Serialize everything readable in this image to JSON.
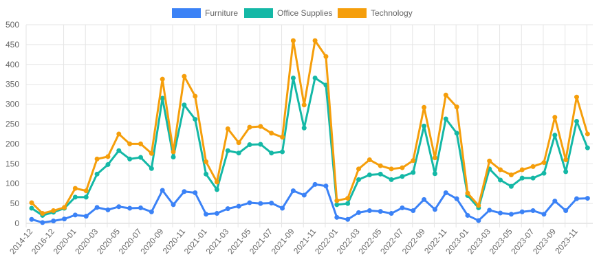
{
  "chart_data": {
    "type": "line",
    "title": "",
    "xlabel": "",
    "ylabel": "",
    "ylim": [
      0,
      500
    ],
    "yticks": [
      0,
      50,
      100,
      150,
      200,
      250,
      300,
      350,
      400,
      450,
      500
    ],
    "grid": true,
    "legend_position": "top",
    "categories": [
      "2014-12",
      "2015-12",
      "2016-12",
      "2019-12",
      "2020-01",
      "2020-02",
      "2020-03",
      "2020-04",
      "2020-05",
      "2020-06",
      "2020-07",
      "2020-08",
      "2020-09",
      "2020-10",
      "2020-11",
      "2020-12",
      "2021-01",
      "2021-02",
      "2021-03",
      "2021-04",
      "2021-05",
      "2021-06",
      "2021-07",
      "2021-08",
      "2021-09",
      "2021-10",
      "2021-11",
      "2021-12",
      "2022-01",
      "2022-02",
      "2022-03",
      "2022-04",
      "2022-05",
      "2022-06",
      "2022-07",
      "2022-08",
      "2022-09",
      "2022-10",
      "2022-11",
      "2022-12",
      "2023-01",
      "2023-02",
      "2023-03",
      "2023-04",
      "2023-05",
      "2023-06",
      "2023-07",
      "2023-08",
      "2023-09",
      "2023-10",
      "2023-11",
      "2023-12"
    ],
    "series": [
      {
        "name": "Furniture",
        "color": "#3b82f6",
        "values": [
          10,
          2,
          6,
          11,
          21,
          18,
          40,
          34,
          42,
          38,
          39,
          29,
          83,
          47,
          80,
          77,
          23,
          25,
          37,
          43,
          52,
          50,
          51,
          38,
          82,
          71,
          98,
          94,
          15,
          10,
          27,
          32,
          30,
          25,
          39,
          32,
          60,
          35,
          77,
          62,
          20,
          7,
          33,
          26,
          23,
          29,
          32,
          23,
          56,
          32,
          62,
          63
        ]
      },
      {
        "name": "Office Supplies",
        "color": "#14b8a6",
        "values": [
          38,
          20,
          28,
          38,
          66,
          66,
          124,
          148,
          183,
          162,
          166,
          138,
          315,
          167,
          298,
          262,
          124,
          85,
          183,
          177,
          198,
          199,
          177,
          180,
          366,
          240,
          366,
          348,
          47,
          50,
          110,
          122,
          124,
          110,
          118,
          128,
          245,
          125,
          263,
          227,
          70,
          39,
          137,
          109,
          93,
          114,
          114,
          126,
          222,
          130,
          257,
          190
        ]
      },
      {
        "name": "Technology",
        "color": "#f59e0b",
        "values": [
          52,
          25,
          32,
          40,
          88,
          82,
          162,
          168,
          225,
          200,
          200,
          176,
          363,
          180,
          370,
          320,
          155,
          104,
          238,
          203,
          242,
          244,
          227,
          217,
          460,
          298,
          460,
          420,
          57,
          63,
          137,
          160,
          145,
          137,
          140,
          158,
          292,
          165,
          323,
          293,
          76,
          45,
          157,
          135,
          122,
          135,
          143,
          153,
          267,
          160,
          318,
          225
        ]
      }
    ]
  }
}
